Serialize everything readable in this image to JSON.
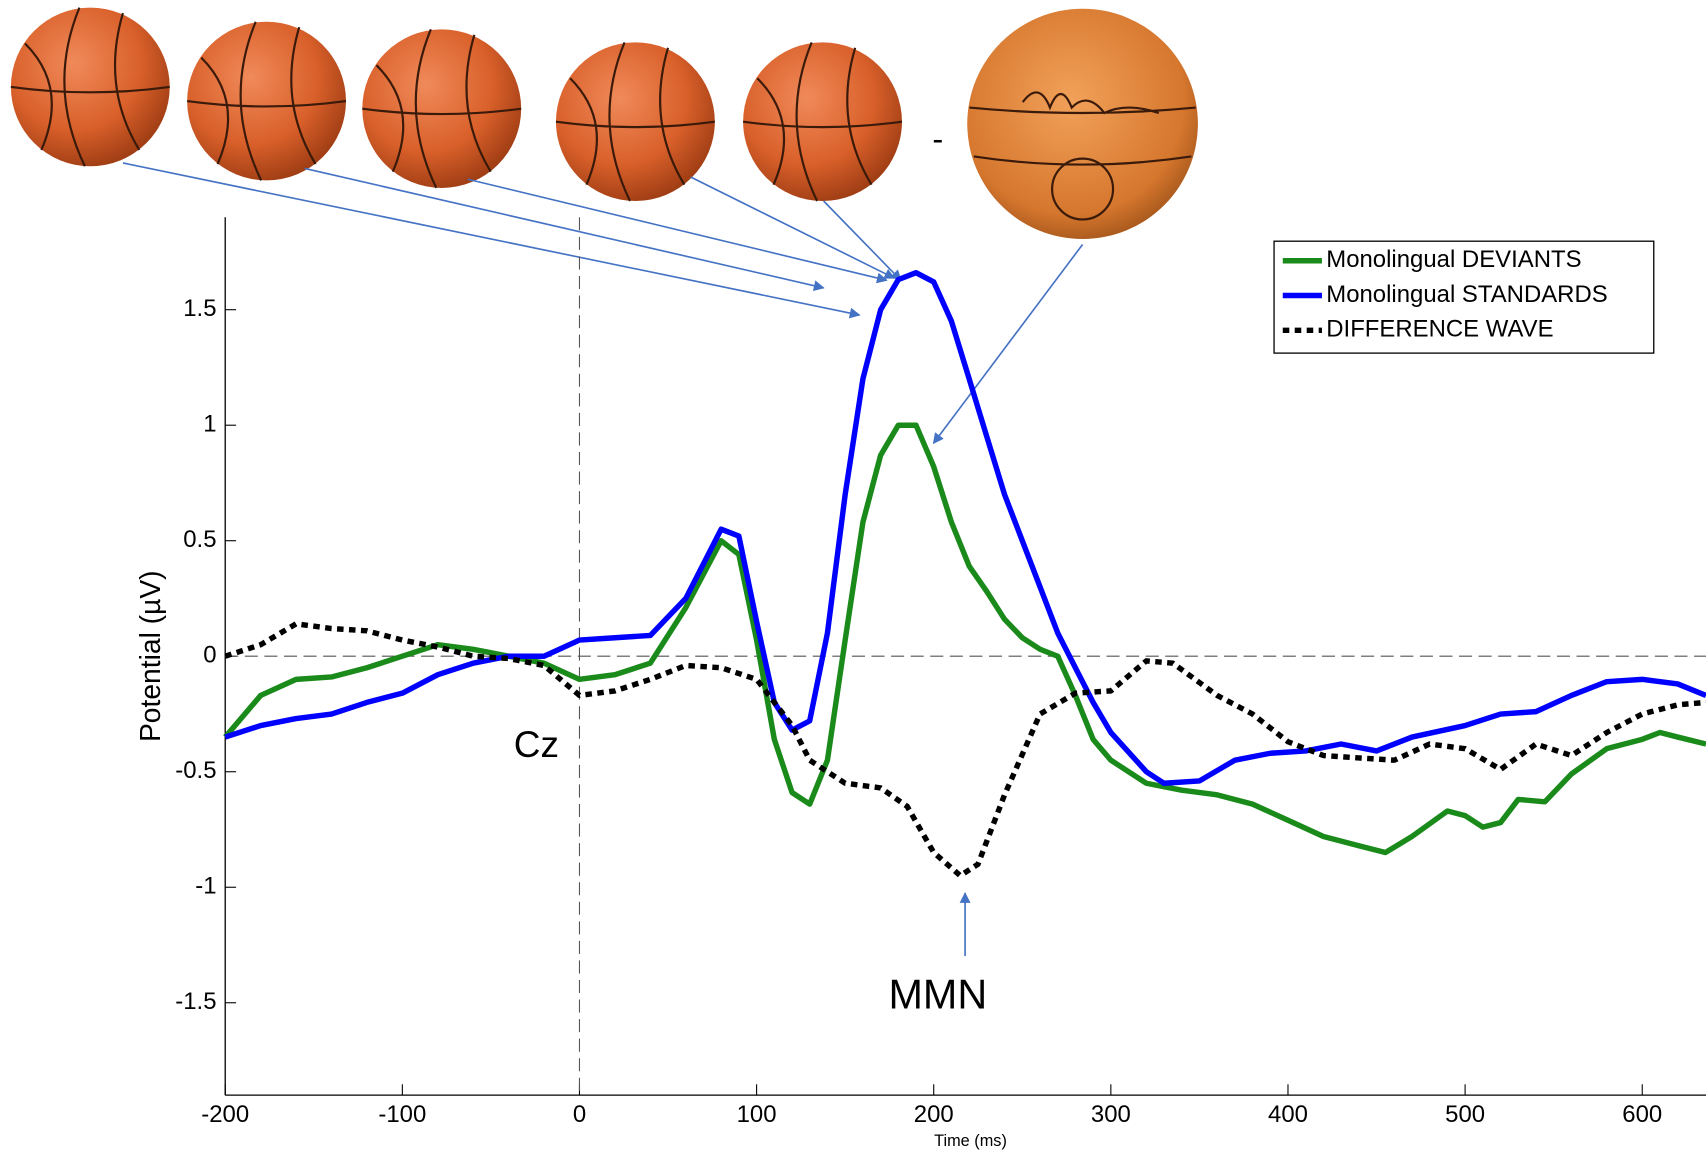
{
  "chart_data": {
    "type": "line",
    "x_label": "Time (ms)",
    "y_label": "Potential (µV)",
    "annotations": [
      "Cz",
      "MMN",
      "-"
    ],
    "xlim": [
      -200,
      636
    ],
    "ylim": [
      -1.9,
      1.9
    ],
    "xticks": [
      -200,
      -100,
      0,
      100,
      200,
      300,
      400,
      500,
      600
    ],
    "yticks": [
      -1.5,
      -1,
      -0.5,
      0,
      0.5,
      1,
      1.5
    ],
    "zero_lines": true,
    "legend": "upper right",
    "series": [
      {
        "name": "Monolingual DEVIANTS",
        "color": "#1a8a1a",
        "style": "solid",
        "x": [
          -200,
          -180,
          -160,
          -140,
          -120,
          -100,
          -80,
          -60,
          -40,
          -20,
          0,
          20,
          40,
          60,
          80,
          90,
          100,
          110,
          120,
          130,
          140,
          150,
          160,
          170,
          180,
          190,
          200,
          210,
          220,
          230,
          240,
          250,
          260,
          270,
          280,
          290,
          300,
          320,
          340,
          360,
          380,
          400,
          420,
          440,
          455,
          470,
          490,
          500,
          510,
          520,
          530,
          545,
          560,
          580,
          600,
          610,
          620,
          636
        ],
        "values": [
          -0.35,
          -0.17,
          -0.1,
          -0.09,
          -0.05,
          0,
          0.05,
          0.03,
          0,
          -0.03,
          -0.1,
          -0.08,
          -0.03,
          0.21,
          0.5,
          0.44,
          0.07,
          -0.36,
          -0.59,
          -0.64,
          -0.45,
          0.07,
          0.58,
          0.87,
          1.0,
          1.0,
          0.82,
          0.58,
          0.39,
          0.28,
          0.16,
          0.08,
          0.03,
          0,
          -0.17,
          -0.36,
          -0.45,
          -0.55,
          -0.58,
          -0.6,
          -0.64,
          -0.71,
          -0.78,
          -0.82,
          -0.85,
          -0.78,
          -0.67,
          -0.69,
          -0.74,
          -0.72,
          -0.62,
          -0.63,
          -0.51,
          -0.4,
          -0.36,
          -0.33,
          -0.35,
          -0.38
        ]
      },
      {
        "name": "Monolingual STANDARDS",
        "color": "#0000ff",
        "style": "solid",
        "x": [
          -200,
          -180,
          -160,
          -140,
          -120,
          -100,
          -80,
          -60,
          -40,
          -20,
          0,
          20,
          40,
          60,
          80,
          90,
          100,
          110,
          120,
          130,
          140,
          150,
          160,
          170,
          180,
          190,
          200,
          210,
          220,
          230,
          240,
          250,
          260,
          270,
          280,
          290,
          300,
          320,
          330,
          350,
          370,
          390,
          410,
          430,
          450,
          470,
          500,
          520,
          540,
          560,
          580,
          600,
          620,
          636
        ],
        "values": [
          -0.35,
          -0.3,
          -0.27,
          -0.25,
          -0.2,
          -0.16,
          -0.08,
          -0.03,
          0,
          0,
          0.07,
          0.08,
          0.09,
          0.25,
          0.55,
          0.52,
          0.15,
          -0.2,
          -0.32,
          -0.28,
          0.1,
          0.7,
          1.2,
          1.5,
          1.63,
          1.66,
          1.62,
          1.45,
          1.2,
          0.95,
          0.7,
          0.5,
          0.3,
          0.1,
          -0.05,
          -0.2,
          -0.33,
          -0.5,
          -0.55,
          -0.54,
          -0.45,
          -0.42,
          -0.41,
          -0.38,
          -0.41,
          -0.35,
          -0.3,
          -0.25,
          -0.24,
          -0.17,
          -0.11,
          -0.1,
          -0.12,
          -0.17
        ]
      },
      {
        "name": "DIFFERENCE WAVE",
        "color": "#000000",
        "style": "dotted",
        "x": [
          -200,
          -180,
          -160,
          -140,
          -120,
          -100,
          -80,
          -60,
          -40,
          -20,
          0,
          20,
          40,
          60,
          80,
          100,
          110,
          120,
          130,
          150,
          170,
          185,
          200,
          215,
          225,
          240,
          260,
          280,
          300,
          320,
          335,
          360,
          380,
          400,
          420,
          440,
          460,
          480,
          500,
          520,
          540,
          560,
          580,
          600,
          620,
          636
        ],
        "values": [
          0,
          0.05,
          0.14,
          0.12,
          0.11,
          0.07,
          0.04,
          0,
          -0.01,
          -0.04,
          -0.17,
          -0.15,
          -0.1,
          -0.04,
          -0.05,
          -0.1,
          -0.2,
          -0.3,
          -0.45,
          -0.55,
          -0.57,
          -0.65,
          -0.85,
          -0.95,
          -0.9,
          -0.6,
          -0.25,
          -0.16,
          -0.15,
          -0.02,
          -0.03,
          -0.17,
          -0.25,
          -0.37,
          -0.43,
          -0.44,
          -0.45,
          -0.38,
          -0.4,
          -0.49,
          -0.38,
          -0.43,
          -0.33,
          -0.25,
          -0.21,
          -0.2
        ]
      }
    ]
  }
}
